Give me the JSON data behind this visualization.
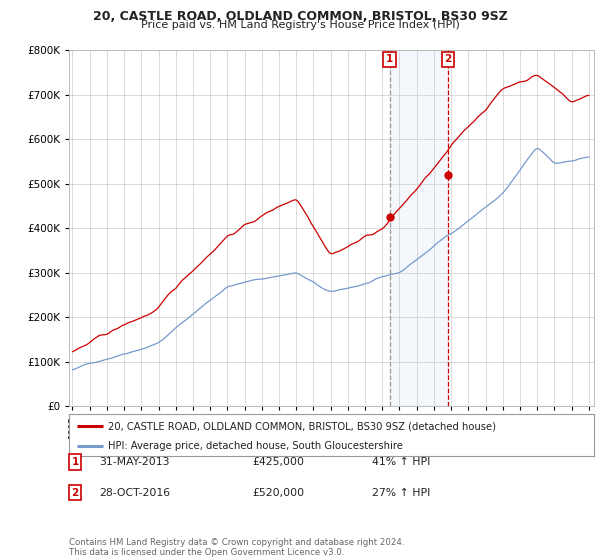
{
  "title1": "20, CASTLE ROAD, OLDLAND COMMON, BRISTOL, BS30 9SZ",
  "title2": "Price paid vs. HM Land Registry's House Price Index (HPI)",
  "background_color": "#ffffff",
  "line1_color": "#cc0000",
  "line2_color": "#7799cc",
  "sale1_x": 2013.42,
  "sale1_y": 425000,
  "sale2_x": 2016.83,
  "sale2_y": 520000,
  "legend1": "20, CASTLE ROAD, OLDLAND COMMON, BRISTOL, BS30 9SZ (detached house)",
  "legend2": "HPI: Average price, detached house, South Gloucestershire",
  "table_data": [
    {
      "num": "1",
      "date": "31-MAY-2013",
      "price": "£425,000",
      "pct": "41% ↑ HPI"
    },
    {
      "num": "2",
      "date": "28-OCT-2016",
      "price": "£520,000",
      "pct": "27% ↑ HPI"
    }
  ],
  "footer": "Contains HM Land Registry data © Crown copyright and database right 2024.\nThis data is licensed under the Open Government Licence v3.0.",
  "ylim": [
    0,
    800000
  ],
  "xlim_left": 1994.8,
  "xlim_right": 2025.3
}
